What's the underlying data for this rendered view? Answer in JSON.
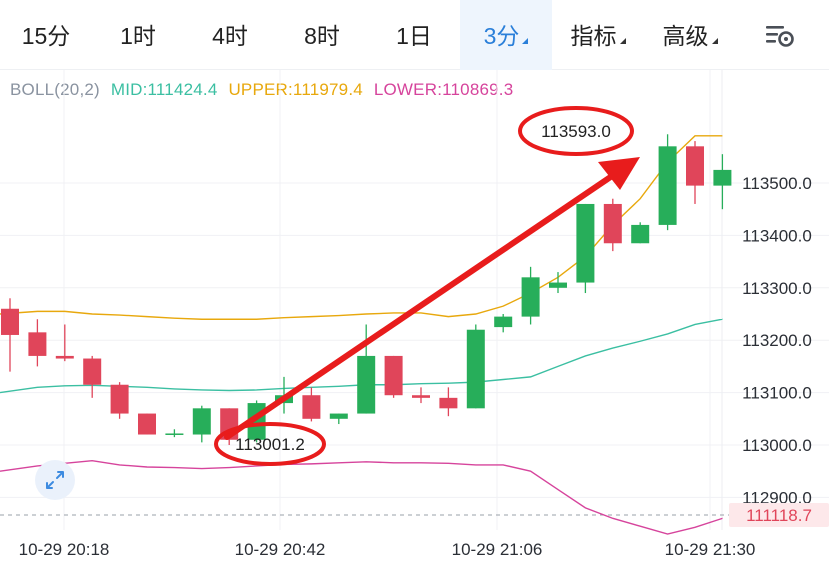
{
  "tabs": [
    {
      "label": "15分",
      "dropdown": false,
      "active": false
    },
    {
      "label": "1时",
      "dropdown": false,
      "active": false
    },
    {
      "label": "4时",
      "dropdown": false,
      "active": false
    },
    {
      "label": "8时",
      "dropdown": false,
      "active": false
    },
    {
      "label": "1日",
      "dropdown": false,
      "active": false
    },
    {
      "label": "3分",
      "dropdown": true,
      "active": true
    },
    {
      "label": "指标",
      "dropdown": true,
      "active": false
    },
    {
      "label": "高级",
      "dropdown": true,
      "active": false
    }
  ],
  "indicator": {
    "name": "BOLL(20,2)",
    "mid": "MID:111424.4",
    "upper": "UPPER:111979.4",
    "lower": "LOWER:110869.3"
  },
  "price_axis": [
    "113500.0",
    "113400.0",
    "113300.0",
    "113200.0",
    "113100.0",
    "113000.0",
    "112900.0"
  ],
  "current_price": "111118.7",
  "time_axis": [
    "10-29 20:18",
    "10-29 20:42",
    "10-29 21:06",
    "10-29 21:30"
  ],
  "annotations": {
    "high": "113593.0",
    "low": "113001.2"
  },
  "colors": {
    "up": "#27ae5a",
    "down": "#e0455a",
    "mid": "#3bbfa2",
    "upper": "#e8a80d",
    "lower": "#d6449c",
    "arrow": "#e81c1c",
    "accent": "#2a7fd9"
  },
  "chart_data": {
    "type": "candlestick",
    "y_range": [
      112880,
      113620
    ],
    "candles": [
      {
        "o": 113260,
        "h": 113280,
        "l": 113140,
        "c": 113210
      },
      {
        "o": 113215,
        "h": 113240,
        "l": 113150,
        "c": 113170
      },
      {
        "o": 113170,
        "h": 113230,
        "l": 113160,
        "c": 113165
      },
      {
        "o": 113165,
        "h": 113170,
        "l": 113090,
        "c": 113115
      },
      {
        "o": 113115,
        "h": 113120,
        "l": 113050,
        "c": 113060
      },
      {
        "o": 113060,
        "h": 113060,
        "l": 113020,
        "c": 113020
      },
      {
        "o": 113020,
        "h": 113030,
        "l": 113015,
        "c": 113022
      },
      {
        "o": 113020,
        "h": 113075,
        "l": 113005,
        "c": 113070
      },
      {
        "o": 113070,
        "h": 113070,
        "l": 113000,
        "c": 113010
      },
      {
        "o": 113010,
        "h": 113085,
        "l": 113005,
        "c": 113080
      },
      {
        "o": 113080,
        "h": 113130,
        "l": 113060,
        "c": 113095
      },
      {
        "o": 113095,
        "h": 113110,
        "l": 113045,
        "c": 113050
      },
      {
        "o": 113050,
        "h": 113060,
        "l": 113040,
        "c": 113060
      },
      {
        "o": 113060,
        "h": 113230,
        "l": 113060,
        "c": 113170
      },
      {
        "o": 113170,
        "h": 113170,
        "l": 113090,
        "c": 113095
      },
      {
        "o": 113095,
        "h": 113110,
        "l": 113080,
        "c": 113090
      },
      {
        "o": 113090,
        "h": 113110,
        "l": 113055,
        "c": 113070
      },
      {
        "o": 113070,
        "h": 113230,
        "l": 113070,
        "c": 113220
      },
      {
        "o": 113225,
        "h": 113250,
        "l": 113215,
        "c": 113245
      },
      {
        "o": 113245,
        "h": 113340,
        "l": 113230,
        "c": 113320
      },
      {
        "o": 113300,
        "h": 113330,
        "l": 113290,
        "c": 113310
      },
      {
        "o": 113310,
        "h": 113460,
        "l": 113290,
        "c": 113460
      },
      {
        "o": 113460,
        "h": 113470,
        "l": 113370,
        "c": 113385
      },
      {
        "o": 113385,
        "h": 113425,
        "l": 113385,
        "c": 113420
      },
      {
        "o": 113420,
        "h": 113593,
        "l": 113410,
        "c": 113570
      },
      {
        "o": 113570,
        "h": 113580,
        "l": 113460,
        "c": 113495
      },
      {
        "o": 113495,
        "h": 113555,
        "l": 113450,
        "c": 113525
      }
    ],
    "upper": [
      113250,
      113255,
      113255,
      113250,
      113248,
      113245,
      113242,
      113240,
      113240,
      113240,
      113243,
      113245,
      113247,
      113250,
      113252,
      113252,
      113245,
      113250,
      113265,
      113290,
      113320,
      113360,
      113420,
      113470,
      113540,
      113590,
      113590
    ],
    "mid": [
      113100,
      113110,
      113113,
      113114,
      113112,
      113110,
      113107,
      113105,
      113104,
      113105,
      113108,
      113110,
      113112,
      113115,
      113115,
      113117,
      113118,
      113120,
      113125,
      113130,
      113150,
      113170,
      113185,
      113198,
      113212,
      113230,
      113240
    ],
    "lower": [
      112950,
      112960,
      112965,
      112970,
      112962,
      112958,
      112957,
      112955,
      112957,
      112960,
      112963,
      112964,
      112966,
      112968,
      112966,
      112966,
      112965,
      112962,
      112962,
      112950,
      112915,
      112880,
      112860,
      112845,
      112830,
      112843,
      112860
    ]
  }
}
